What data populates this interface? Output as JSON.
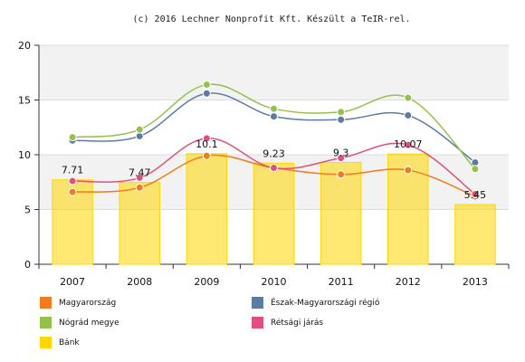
{
  "chart_data": {
    "type": "bar",
    "credit": "(c) 2016 Lechner Nonprofit Kft. Készült a TeIR-rel.",
    "categories": [
      "2007",
      "2008",
      "2009",
      "2010",
      "2011",
      "2012",
      "2013"
    ],
    "ylim": [
      0,
      20
    ],
    "yticks": [
      "0",
      "5",
      "10",
      "15",
      "20"
    ],
    "grid": true,
    "legend_position": "bottom",
    "bar_series": {
      "name": "Bánk",
      "color": "#FFD700",
      "values": [
        7.71,
        7.47,
        10.1,
        9.23,
        9.3,
        10.07,
        5.45
      ],
      "labels": [
        "7.71",
        "7.47",
        "10.1",
        "9.23",
        "9.3",
        "10.07",
        "5.45"
      ]
    },
    "line_series": [
      {
        "name": "Magyarország",
        "color": "#F27B1A",
        "values": [
          6.6,
          7.0,
          9.9,
          8.8,
          8.2,
          8.6,
          6.2
        ]
      },
      {
        "name": "Észak-Magyarországi régió",
        "color": "#5B7BA3",
        "values": [
          11.3,
          11.7,
          15.6,
          13.5,
          13.2,
          13.6,
          9.3
        ]
      },
      {
        "name": "Nógrád megye",
        "color": "#95C14B",
        "values": [
          11.6,
          12.3,
          16.4,
          14.2,
          13.9,
          15.2,
          8.7
        ]
      },
      {
        "name": "Rétsági járás",
        "color": "#E0507A",
        "values": [
          7.6,
          7.9,
          11.5,
          8.8,
          9.7,
          10.9,
          6.4
        ]
      }
    ]
  },
  "legend": {
    "items": [
      {
        "label": "Magyarország",
        "color": "#F27B1A"
      },
      {
        "label": "Észak-Magyarországi régió",
        "color": "#5B7BA3"
      },
      {
        "label": "Nógrád megye",
        "color": "#95C14B"
      },
      {
        "label": "Rétsági járás",
        "color": "#E0507A"
      },
      {
        "label": "Bánk",
        "color": "#FFD700"
      }
    ]
  }
}
